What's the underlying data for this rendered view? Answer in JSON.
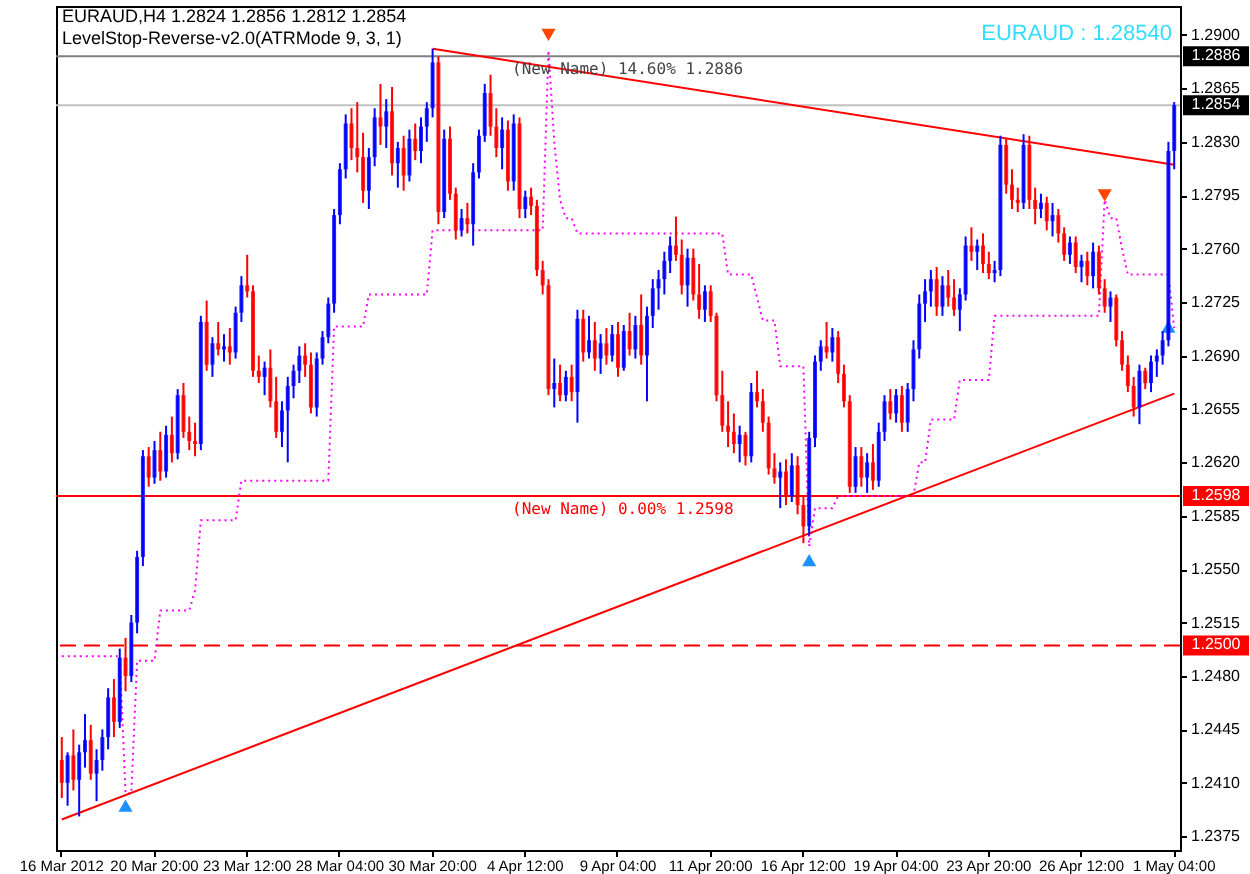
{
  "chart_data": {
    "type": "candlestick",
    "title": "EURAUD,H4  1.2824 1.2856 1.2812 1.2854",
    "subtitle": "LevelStop-Reverse-v2.0(ATRMode 9, 3, 1)",
    "categories": [
      "16 Mar 2012",
      null,
      null,
      null,
      null,
      null,
      null,
      null,
      null,
      null,
      null,
      null,
      null,
      null,
      null,
      null,
      "20 Mar 20:00",
      null,
      null,
      null,
      null,
      null,
      null,
      null,
      null,
      null,
      null,
      null,
      null,
      null,
      null,
      null,
      "23 Mar 12:00",
      null,
      null,
      null,
      null,
      null,
      null,
      null,
      null,
      null,
      null,
      null,
      null,
      null,
      null,
      null,
      "28 Mar 04:00",
      null,
      null,
      null,
      null,
      null,
      null,
      null,
      null,
      null,
      null,
      null,
      null,
      null,
      null,
      null,
      "30 Mar 20:00",
      null,
      null,
      null,
      null,
      null,
      null,
      null,
      null,
      null,
      null,
      null,
      null,
      null,
      null,
      null,
      "4 Apr 12:00",
      null,
      null,
      null,
      null,
      null,
      null,
      null,
      null,
      null,
      null,
      null,
      null,
      null,
      null,
      null,
      "9 Apr 04:00",
      null,
      null,
      null,
      null,
      null,
      null,
      null,
      null,
      null,
      null,
      null,
      null,
      null,
      null,
      null,
      "11 Apr 20:00",
      null,
      null,
      null,
      null,
      null,
      null,
      null,
      null,
      null,
      null,
      null,
      null,
      null,
      null,
      null,
      "16 Apr 12:00",
      null,
      null,
      null,
      null,
      null,
      null,
      null,
      null,
      null,
      null,
      null,
      null,
      null,
      null,
      null,
      "19 Apr 04:00",
      null,
      null,
      null,
      null,
      null,
      null,
      null,
      null,
      null,
      null,
      null,
      null,
      null,
      null,
      null,
      "23 Apr 20:00",
      null,
      null,
      null,
      null,
      null,
      null,
      null,
      null,
      null,
      null,
      null,
      null,
      null,
      null,
      null,
      "26 Apr 12:00",
      null,
      null,
      null,
      null,
      null,
      null,
      null,
      null,
      null,
      null,
      null,
      null,
      null,
      null,
      null,
      "1 May 04:00"
    ],
    "ohlc": [
      [
        1.2425,
        1.244,
        1.24,
        1.241
      ],
      [
        1.241,
        1.243,
        1.2395,
        1.2428
      ],
      [
        1.2428,
        1.2445,
        1.2405,
        1.2412
      ],
      [
        1.2412,
        1.2435,
        1.2388,
        1.243
      ],
      [
        1.243,
        1.2455,
        1.242,
        1.2438
      ],
      [
        1.2438,
        1.2448,
        1.2412,
        1.2416
      ],
      [
        1.2416,
        1.2432,
        1.2398,
        1.2425
      ],
      [
        1.2425,
        1.2445,
        1.2418,
        1.244
      ],
      [
        1.244,
        1.2472,
        1.2432,
        1.2466
      ],
      [
        1.2466,
        1.2478,
        1.244,
        1.245
      ],
      [
        1.245,
        1.2498,
        1.2446,
        1.2492
      ],
      [
        1.2492,
        1.2505,
        1.247,
        1.248
      ],
      [
        1.248,
        1.252,
        1.2476,
        1.2515
      ],
      [
        1.2515,
        1.2562,
        1.2508,
        1.2558
      ],
      [
        1.2558,
        1.2628,
        1.2552,
        1.2624
      ],
      [
        1.2624,
        1.263,
        1.2604,
        1.261
      ],
      [
        1.261,
        1.2634,
        1.2606,
        1.2628
      ],
      [
        1.2628,
        1.264,
        1.2608,
        1.2614
      ],
      [
        1.2614,
        1.2644,
        1.261,
        1.2638
      ],
      [
        1.2638,
        1.265,
        1.262,
        1.2626
      ],
      [
        1.2626,
        1.2668,
        1.2622,
        1.2664
      ],
      [
        1.2664,
        1.2672,
        1.2636,
        1.264
      ],
      [
        1.264,
        1.265,
        1.2628,
        1.2634
      ],
      [
        1.2634,
        1.2646,
        1.2624,
        1.2632
      ],
      [
        1.2632,
        1.2716,
        1.2628,
        1.2712
      ],
      [
        1.2712,
        1.2726,
        1.268,
        1.2684
      ],
      [
        1.2684,
        1.2702,
        1.2676,
        1.2698
      ],
      [
        1.2698,
        1.2712,
        1.269,
        1.2694
      ],
      [
        1.2694,
        1.2704,
        1.2686,
        1.2696
      ],
      [
        1.2696,
        1.2708,
        1.2684,
        1.2692
      ],
      [
        1.2692,
        1.2722,
        1.2688,
        1.2718
      ],
      [
        1.2718,
        1.2742,
        1.2712,
        1.2736
      ],
      [
        1.2736,
        1.2756,
        1.2728,
        1.2732
      ],
      [
        1.2732,
        1.2736,
        1.2676,
        1.268
      ],
      [
        1.268,
        1.269,
        1.2672,
        1.2676
      ],
      [
        1.2676,
        1.2686,
        1.2664,
        1.2682
      ],
      [
        1.2682,
        1.2694,
        1.2656,
        1.266
      ],
      [
        1.266,
        1.2676,
        1.2636,
        1.264
      ],
      [
        1.264,
        1.266,
        1.263,
        1.2654
      ],
      [
        1.2654,
        1.2676,
        1.262,
        1.267
      ],
      [
        1.267,
        1.2684,
        1.2662,
        1.268
      ],
      [
        1.268,
        1.2696,
        1.2672,
        1.269
      ],
      [
        1.269,
        1.2698,
        1.2676,
        1.2684
      ],
      [
        1.2684,
        1.2692,
        1.2652,
        1.2656
      ],
      [
        1.2656,
        1.2692,
        1.265,
        1.2688
      ],
      [
        1.2688,
        1.2706,
        1.2684,
        1.2702
      ],
      [
        1.2702,
        1.2728,
        1.2698,
        1.2724
      ],
      [
        1.2724,
        1.2786,
        1.2718,
        1.2782
      ],
      [
        1.2782,
        1.2816,
        1.2776,
        1.2812
      ],
      [
        1.2812,
        1.2848,
        1.2806,
        1.2842
      ],
      [
        1.2842,
        1.2852,
        1.2818,
        1.2826
      ],
      [
        1.2826,
        1.2856,
        1.281,
        1.282
      ],
      [
        1.282,
        1.2836,
        1.279,
        1.2798
      ],
      [
        1.2798,
        1.2826,
        1.2786,
        1.282
      ],
      [
        1.282,
        1.2852,
        1.2814,
        1.2846
      ],
      [
        1.2846,
        1.2868,
        1.2828,
        1.284
      ],
      [
        1.284,
        1.2858,
        1.2826,
        1.285
      ],
      [
        1.285,
        1.2866,
        1.2808,
        1.2816
      ],
      [
        1.2816,
        1.283,
        1.28,
        1.2826
      ],
      [
        1.2826,
        1.2834,
        1.2798,
        1.2808
      ],
      [
        1.2808,
        1.2838,
        1.2804,
        1.2832
      ],
      [
        1.2832,
        1.2842,
        1.2818,
        1.2824
      ],
      [
        1.2824,
        1.2846,
        1.2816,
        1.284
      ],
      [
        1.284,
        1.2856,
        1.283,
        1.2852
      ],
      [
        1.2852,
        1.2891,
        1.2846,
        1.2882
      ],
      [
        1.2882,
        1.2886,
        1.2776,
        1.2784
      ],
      [
        1.2784,
        1.2838,
        1.278,
        1.2832
      ],
      [
        1.2832,
        1.284,
        1.2792,
        1.2796
      ],
      [
        1.2796,
        1.28,
        1.2766,
        1.2772
      ],
      [
        1.2772,
        1.2786,
        1.2768,
        1.278
      ],
      [
        1.278,
        1.279,
        1.277,
        1.2776
      ],
      [
        1.2776,
        1.2816,
        1.2762,
        1.281
      ],
      [
        1.281,
        1.2838,
        1.2806,
        1.2834
      ],
      [
        1.2834,
        1.2868,
        1.283,
        1.2862
      ],
      [
        1.2862,
        1.2874,
        1.2834,
        1.284
      ],
      [
        1.284,
        1.2852,
        1.282,
        1.2826
      ],
      [
        1.2826,
        1.2846,
        1.2812,
        1.2838
      ],
      [
        1.2838,
        1.2844,
        1.2798,
        1.2804
      ],
      [
        1.2804,
        1.2848,
        1.2798,
        1.2842
      ],
      [
        1.2842,
        1.2846,
        1.278,
        1.2786
      ],
      [
        1.2786,
        1.2798,
        1.278,
        1.2794
      ],
      [
        1.2794,
        1.28,
        1.2782,
        1.2788
      ],
      [
        1.2788,
        1.2792,
        1.2742,
        1.2746
      ],
      [
        1.2746,
        1.2752,
        1.273,
        1.2736
      ],
      [
        1.2736,
        1.274,
        1.2664,
        1.2668
      ],
      [
        1.2668,
        1.2688,
        1.2656,
        1.2672
      ],
      [
        1.2672,
        1.2684,
        1.266,
        1.2664
      ],
      [
        1.2664,
        1.268,
        1.266,
        1.2676
      ],
      [
        1.2676,
        1.2684,
        1.266,
        1.2666
      ],
      [
        1.2666,
        1.272,
        1.2646,
        1.2714
      ],
      [
        1.2714,
        1.272,
        1.2686,
        1.2692
      ],
      [
        1.2692,
        1.2716,
        1.2688,
        1.27
      ],
      [
        1.27,
        1.2712,
        1.268,
        1.2688
      ],
      [
        1.2688,
        1.2704,
        1.2678,
        1.2698
      ],
      [
        1.2698,
        1.2708,
        1.2684,
        1.269
      ],
      [
        1.269,
        1.271,
        1.2686,
        1.2704
      ],
      [
        1.2704,
        1.2712,
        1.2676,
        1.2682
      ],
      [
        1.2682,
        1.271,
        1.268,
        1.2706
      ],
      [
        1.2706,
        1.2718,
        1.269,
        1.2694
      ],
      [
        1.2694,
        1.2716,
        1.2688,
        1.271
      ],
      [
        1.271,
        1.273,
        1.2684,
        1.269
      ],
      [
        1.269,
        1.2722,
        1.266,
        1.2716
      ],
      [
        1.2716,
        1.274,
        1.2708,
        1.2734
      ],
      [
        1.2734,
        1.2746,
        1.272,
        1.274
      ],
      [
        1.274,
        1.2758,
        1.273,
        1.2752
      ],
      [
        1.2752,
        1.2768,
        1.2744,
        1.2762
      ],
      [
        1.2762,
        1.2781,
        1.2752,
        1.2756
      ],
      [
        1.2756,
        1.2766,
        1.273,
        1.2736
      ],
      [
        1.2736,
        1.276,
        1.2722,
        1.2754
      ],
      [
        1.2754,
        1.276,
        1.2726,
        1.273
      ],
      [
        1.273,
        1.275,
        1.2714,
        1.272
      ],
      [
        1.272,
        1.2736,
        1.2712,
        1.2732
      ],
      [
        1.2732,
        1.2736,
        1.2712,
        1.2716
      ],
      [
        1.2716,
        1.2718,
        1.266,
        1.2664
      ],
      [
        1.2664,
        1.268,
        1.264,
        1.2644
      ],
      [
        1.2644,
        1.266,
        1.263,
        1.264
      ],
      [
        1.264,
        1.2652,
        1.2626,
        1.2632
      ],
      [
        1.2632,
        1.2644,
        1.262,
        1.2638
      ],
      [
        1.2638,
        1.264,
        1.2618,
        1.2624
      ],
      [
        1.2624,
        1.2672,
        1.262,
        1.2666
      ],
      [
        1.2666,
        1.268,
        1.2656,
        1.266
      ],
      [
        1.266,
        1.2668,
        1.264,
        1.2646
      ],
      [
        1.2646,
        1.265,
        1.2612,
        1.2616
      ],
      [
        1.2616,
        1.2626,
        1.2606,
        1.261
      ],
      [
        1.261,
        1.262,
        1.259,
        1.2614
      ],
      [
        1.2614,
        1.2622,
        1.2592,
        1.2598
      ],
      [
        1.2598,
        1.2626,
        1.2594,
        1.2618
      ],
      [
        1.2618,
        1.2624,
        1.2586,
        1.2592
      ],
      [
        1.2592,
        1.2598,
        1.2567,
        1.2578
      ],
      [
        1.2578,
        1.264,
        1.2572,
        1.2636
      ],
      [
        1.2636,
        1.269,
        1.263,
        1.2686
      ],
      [
        1.2686,
        1.27,
        1.268,
        1.2696
      ],
      [
        1.2696,
        1.2712,
        1.2688,
        1.2692
      ],
      [
        1.2692,
        1.2708,
        1.2686,
        1.2702
      ],
      [
        1.2702,
        1.2706,
        1.2672,
        1.2678
      ],
      [
        1.2678,
        1.2684,
        1.2656,
        1.266
      ],
      [
        1.266,
        1.2664,
        1.26,
        1.2604
      ],
      [
        1.2604,
        1.263,
        1.26,
        1.2624
      ],
      [
        1.2624,
        1.263,
        1.2604,
        1.261
      ],
      [
        1.261,
        1.2626,
        1.26,
        1.262
      ],
      [
        1.262,
        1.2632,
        1.2602,
        1.2608
      ],
      [
        1.2608,
        1.2646,
        1.2604,
        1.264
      ],
      [
        1.264,
        1.2664,
        1.2634,
        1.266
      ],
      [
        1.266,
        1.2668,
        1.2648,
        1.2652
      ],
      [
        1.2652,
        1.2668,
        1.2646,
        1.2664
      ],
      [
        1.2664,
        1.267,
        1.264,
        1.2646
      ],
      [
        1.2646,
        1.2672,
        1.264,
        1.2668
      ],
      [
        1.2668,
        1.27,
        1.266,
        1.2694
      ],
      [
        1.2694,
        1.273,
        1.2688,
        1.2724
      ],
      [
        1.2724,
        1.274,
        1.2712,
        1.2732
      ],
      [
        1.2732,
        1.2746,
        1.2722,
        1.274
      ],
      [
        1.274,
        1.2748,
        1.2716,
        1.2722
      ],
      [
        1.2722,
        1.2742,
        1.2716,
        1.2736
      ],
      [
        1.2736,
        1.2746,
        1.2722,
        1.2728
      ],
      [
        1.2728,
        1.274,
        1.2716,
        1.272
      ],
      [
        1.272,
        1.2734,
        1.2706,
        1.273
      ],
      [
        1.273,
        1.2768,
        1.2726,
        1.2762
      ],
      [
        1.2762,
        1.2774,
        1.2752,
        1.2758
      ],
      [
        1.2758,
        1.2766,
        1.2746,
        1.2762
      ],
      [
        1.2762,
        1.277,
        1.2744,
        1.275
      ],
      [
        1.275,
        1.2758,
        1.274,
        1.2744
      ],
      [
        1.2744,
        1.2752,
        1.2738,
        1.2746
      ],
      [
        1.2746,
        1.2834,
        1.2742,
        1.2828
      ],
      [
        1.2828,
        1.2832,
        1.2796,
        1.2802
      ],
      [
        1.2802,
        1.2812,
        1.2786,
        1.2792
      ],
      [
        1.2792,
        1.28,
        1.2784,
        1.279
      ],
      [
        1.279,
        1.2835,
        1.2786,
        1.2828
      ],
      [
        1.2828,
        1.2834,
        1.2786,
        1.2792
      ],
      [
        1.2792,
        1.28,
        1.2776,
        1.2786
      ],
      [
        1.2786,
        1.2796,
        1.278,
        1.279
      ],
      [
        1.279,
        1.2794,
        1.2772,
        1.2778
      ],
      [
        1.2778,
        1.279,
        1.2768,
        1.2782
      ],
      [
        1.2782,
        1.2786,
        1.2764,
        1.277
      ],
      [
        1.277,
        1.2774,
        1.2752,
        1.2756
      ],
      [
        1.2756,
        1.2768,
        1.275,
        1.2764
      ],
      [
        1.2764,
        1.2768,
        1.2744,
        1.2748
      ],
      [
        1.2748,
        1.2756,
        1.2738,
        1.2752
      ],
      [
        1.2752,
        1.2758,
        1.2736,
        1.2742
      ],
      [
        1.2742,
        1.2764,
        1.2734,
        1.2758
      ],
      [
        1.2758,
        1.2762,
        1.273,
        1.2734
      ],
      [
        1.2734,
        1.274,
        1.2718,
        1.2722
      ],
      [
        1.2722,
        1.2732,
        1.2712,
        1.2728
      ],
      [
        1.2728,
        1.273,
        1.2696,
        1.27
      ],
      [
        1.27,
        1.2706,
        1.268,
        1.2684
      ],
      [
        1.2684,
        1.269,
        1.2666,
        1.267
      ],
      [
        1.267,
        1.2676,
        1.265,
        1.2656
      ],
      [
        1.2656,
        1.2684,
        1.2645,
        1.268
      ],
      [
        1.268,
        1.2682,
        1.2668,
        1.2672
      ],
      [
        1.2672,
        1.269,
        1.2666,
        1.2686
      ],
      [
        1.2686,
        1.2694,
        1.2676,
        1.269
      ],
      [
        1.269,
        1.2706,
        1.2684,
        1.27
      ],
      [
        1.27,
        1.283,
        1.2696,
        1.2824
      ],
      [
        1.2824,
        1.2856,
        1.2812,
        1.2854
      ]
    ],
    "colors": [
      "#ff0000",
      "#0000ff",
      "#ff0000",
      "#0000ff",
      "#0000ff",
      "#ff0000",
      "#0000ff",
      "#0000ff",
      "#0000ff",
      "#ff0000",
      "#0000ff",
      "#ff0000",
      "#0000ff",
      "#0000ff",
      "#0000ff",
      "#ff0000",
      "#0000ff",
      "#ff0000",
      "#0000ff",
      "#ff0000",
      "#0000ff",
      "#ff0000",
      "#ff0000",
      "#ff0000",
      "#0000ff",
      "#ff0000",
      "#0000ff",
      "#ff0000",
      "#0000ff",
      "#ff0000",
      "#0000ff",
      "#0000ff",
      "#ff0000",
      "#ff0000",
      "#ff0000",
      "#0000ff",
      "#ff0000",
      "#ff0000",
      "#0000ff",
      "#0000ff",
      "#0000ff",
      "#0000ff",
      "#ff0000",
      "#ff0000",
      "#0000ff",
      "#0000ff",
      "#0000ff",
      "#0000ff",
      "#0000ff",
      "#0000ff",
      "#ff0000",
      "#ff0000",
      "#ff0000",
      "#0000ff",
      "#0000ff",
      "#ff0000",
      "#0000ff",
      "#ff0000",
      "#0000ff",
      "#ff0000",
      "#0000ff",
      "#ff0000",
      "#0000ff",
      "#0000ff",
      "#0000ff",
      "#ff0000",
      "#0000ff",
      "#ff0000",
      "#ff0000",
      "#0000ff",
      "#ff0000",
      "#0000ff",
      "#0000ff",
      "#0000ff",
      "#ff0000",
      "#ff0000",
      "#0000ff",
      "#ff0000",
      "#0000ff",
      "#ff0000",
      "#0000ff",
      "#ff0000",
      "#ff0000",
      "#ff0000",
      "#ff0000",
      "#0000ff",
      "#ff0000",
      "#0000ff",
      "#ff0000",
      "#0000ff",
      "#ff0000",
      "#0000ff",
      "#ff0000",
      "#0000ff",
      "#ff0000",
      "#0000ff",
      "#ff0000",
      "#0000ff",
      "#ff0000",
      "#0000ff",
      "#ff0000",
      "#0000ff",
      "#0000ff",
      "#0000ff",
      "#0000ff",
      "#0000ff",
      "#ff0000",
      "#ff0000",
      "#0000ff",
      "#ff0000",
      "#ff0000",
      "#0000ff",
      "#ff0000",
      "#ff0000",
      "#ff0000",
      "#ff0000",
      "#ff0000",
      "#0000ff",
      "#ff0000",
      "#0000ff",
      "#ff0000",
      "#ff0000",
      "#ff0000",
      "#ff0000",
      "#0000ff",
      "#ff0000",
      "#0000ff",
      "#ff0000",
      "#ff0000",
      "#0000ff",
      "#0000ff",
      "#0000ff",
      "#ff0000",
      "#0000ff",
      "#ff0000",
      "#ff0000",
      "#ff0000",
      "#0000ff",
      "#ff0000",
      "#0000ff",
      "#ff0000",
      "#0000ff",
      "#0000ff",
      "#ff0000",
      "#0000ff",
      "#ff0000",
      "#0000ff",
      "#0000ff",
      "#0000ff",
      "#0000ff",
      "#0000ff",
      "#ff0000",
      "#0000ff",
      "#ff0000",
      "#ff0000",
      "#0000ff",
      "#0000ff",
      "#ff0000",
      "#0000ff",
      "#ff0000",
      "#ff0000",
      "#0000ff",
      "#0000ff",
      "#ff0000",
      "#ff0000",
      "#ff0000",
      "#0000ff",
      "#ff0000",
      "#ff0000",
      "#0000ff",
      "#ff0000",
      "#0000ff",
      "#ff0000",
      "#ff0000",
      "#0000ff",
      "#ff0000",
      "#0000ff",
      "#ff0000",
      "#0000ff",
      "#ff0000",
      "#ff0000",
      "#0000ff",
      "#ff0000",
      "#ff0000",
      "#ff0000",
      "#ff0000",
      "#0000ff",
      "#ff0000",
      "#0000ff",
      "#0000ff",
      "#0000ff",
      "#0000ff",
      "#0000ff"
    ],
    "series": [
      {
        "type": "line",
        "color": "#ff00ff",
        "line_style": "dotted",
        "values": [
          1.2493,
          1.2493,
          1.2493,
          1.2493,
          1.2493,
          1.2493,
          1.2493,
          1.2493,
          1.2493,
          1.2493,
          1.2493,
          1.2403,
          1.2403,
          1.249,
          1.249,
          1.249,
          1.249,
          1.2523,
          1.2523,
          1.2523,
          1.2523,
          1.2523,
          1.2523,
          1.2536,
          1.2582,
          1.2582,
          1.2582,
          1.2582,
          1.2582,
          1.2582,
          1.2582,
          1.2608,
          1.2608,
          1.2608,
          1.2608,
          1.2608,
          1.2608,
          1.2608,
          1.2608,
          1.2608,
          1.2608,
          1.2608,
          1.2608,
          1.2608,
          1.2608,
          1.2608,
          1.2608,
          1.2709,
          1.2709,
          1.2709,
          1.2709,
          1.2709,
          1.2709,
          1.273,
          1.273,
          1.273,
          1.273,
          1.273,
          1.273,
          1.273,
          1.273,
          1.273,
          1.273,
          1.273,
          1.2772,
          1.2772,
          1.2772,
          1.2772,
          1.2772,
          1.2772,
          1.2772,
          1.2772,
          1.2772,
          1.2772,
          1.2772,
          1.2772,
          1.2772,
          1.2772,
          1.2772,
          1.2772,
          1.2772,
          1.2772,
          1.2772,
          1.2772,
          1.289,
          1.283,
          1.2792,
          1.278,
          1.278,
          1.277,
          1.277,
          1.277,
          1.277,
          1.277,
          1.277,
          1.277,
          1.277,
          1.277,
          1.277,
          1.277,
          1.277,
          1.277,
          1.277,
          1.277,
          1.277,
          1.277,
          1.277,
          1.277,
          1.277,
          1.277,
          1.277,
          1.277,
          1.277,
          1.277,
          1.277,
          1.2743,
          1.2743,
          1.2743,
          1.2743,
          1.2743,
          1.2728,
          1.2713,
          1.2713,
          1.2713,
          1.2683,
          1.2683,
          1.2683,
          1.2683,
          1.2683,
          1.2565,
          1.259,
          1.259,
          1.259,
          1.259,
          1.2598,
          1.2598,
          1.2598,
          1.2598,
          1.2598,
          1.2598,
          1.2598,
          1.2598,
          1.2598,
          1.2598,
          1.2598,
          1.2598,
          1.2598,
          1.2598,
          1.262,
          1.262,
          1.2648,
          1.2648,
          1.2648,
          1.2648,
          1.2648,
          1.2674,
          1.2674,
          1.2674,
          1.2674,
          1.2674,
          1.2674,
          1.2716,
          1.2716,
          1.2716,
          1.2716,
          1.2716,
          1.2716,
          1.2716,
          1.2716,
          1.2716,
          1.2716,
          1.2716,
          1.2716,
          1.2716,
          1.2716,
          1.2716,
          1.2716,
          1.2716,
          1.2716,
          1.2716,
          1.2792,
          1.278,
          1.278,
          1.276,
          1.2743,
          1.2743,
          1.2743,
          1.2743,
          1.2743,
          1.2743,
          1.2743,
          1.2743,
          1.2708
        ]
      },
      {
        "type": "line",
        "color": "#ff0000",
        "x": [
          "30 Mar 20:00",
          "1 May 04:00"
        ],
        "values": [
          1.2891,
          1.2815
        ]
      },
      {
        "type": "line",
        "color": "#ff0000",
        "x": [
          "16 Mar 2012",
          "1 May 04:00"
        ],
        "values": [
          1.2386,
          1.2665
        ]
      },
      {
        "type": "scatter",
        "color": "#1e90ff",
        "marker": "triangle",
        "values": [
          null,
          null,
          null,
          null,
          null,
          null,
          null,
          null,
          null,
          null,
          null,
          1.2395,
          null,
          null,
          null,
          null,
          null,
          null,
          null,
          null,
          null,
          null,
          null,
          null,
          null,
          null,
          null,
          null,
          null,
          null,
          null,
          null,
          null,
          null,
          null,
          null,
          null,
          null,
          null,
          null,
          null,
          null,
          null,
          null,
          null,
          null,
          null,
          null,
          null,
          null,
          null,
          null,
          null,
          null,
          null,
          null,
          null,
          null,
          null,
          null,
          null,
          null,
          null,
          null,
          null,
          null,
          null,
          null,
          null,
          null,
          null,
          null,
          null,
          null,
          null,
          null,
          null,
          null,
          null,
          null,
          null,
          null,
          null,
          null,
          null,
          null,
          null,
          null,
          null,
          null,
          null,
          null,
          null,
          null,
          null,
          null,
          null,
          null,
          null,
          null,
          null,
          null,
          null,
          null,
          null,
          null,
          null,
          null,
          null,
          null,
          null,
          null,
          null,
          null,
          null,
          null,
          null,
          null,
          null,
          null,
          null,
          null,
          null,
          null,
          null,
          null,
          null,
          null,
          null,
          1.2556,
          null,
          null,
          null,
          null,
          null,
          null,
          null,
          null,
          null,
          null,
          null,
          null,
          null,
          null,
          null,
          null,
          null,
          null,
          null,
          null,
          null,
          null,
          null,
          null,
          null,
          null,
          null,
          null,
          null,
          null,
          null,
          null,
          null,
          null,
          null,
          null,
          null,
          null,
          null,
          null,
          null,
          null,
          null,
          null,
          null,
          null,
          null,
          null,
          null,
          null,
          null,
          null,
          null,
          null,
          null,
          null,
          null,
          null,
          null,
          null,
          null,
          1.2709,
          null
        ]
      },
      {
        "type": "scatter",
        "color": "#ff4500",
        "marker": "triangle",
        "values": [
          null,
          null,
          null,
          null,
          null,
          null,
          null,
          null,
          null,
          null,
          null,
          null,
          null,
          null,
          null,
          null,
          null,
          null,
          null,
          null,
          null,
          null,
          null,
          null,
          null,
          null,
          null,
          null,
          null,
          null,
          null,
          null,
          null,
          null,
          null,
          null,
          null,
          null,
          null,
          null,
          null,
          null,
          null,
          null,
          null,
          null,
          null,
          null,
          null,
          null,
          null,
          null,
          null,
          null,
          null,
          null,
          null,
          null,
          null,
          null,
          null,
          null,
          null,
          null,
          null,
          null,
          null,
          null,
          null,
          null,
          null,
          null,
          null,
          null,
          null,
          null,
          null,
          null,
          null,
          null,
          null,
          null,
          null,
          null,
          1.29,
          null,
          null,
          null,
          null,
          null,
          null,
          null,
          null,
          null,
          null,
          null,
          null,
          null,
          null,
          null,
          null,
          null,
          null,
          null,
          null,
          null,
          null,
          null,
          null,
          null,
          null,
          null,
          null,
          null,
          null,
          null,
          null,
          null,
          null,
          null,
          null,
          null,
          null,
          null,
          null,
          null,
          null,
          null,
          null,
          null,
          null,
          null,
          null,
          null,
          null,
          null,
          null,
          null,
          null,
          null,
          null,
          null,
          null,
          null,
          null,
          null,
          null,
          null,
          null,
          null,
          null,
          null,
          null,
          null,
          null,
          null,
          null,
          null,
          null,
          null,
          null,
          null,
          null,
          null,
          null,
          null,
          null,
          null,
          null,
          null,
          null,
          null,
          null,
          null,
          null,
          null,
          null,
          null,
          null,
          null,
          1.2795,
          null,
          null,
          null,
          null,
          null,
          null,
          null,
          null,
          null,
          null,
          null,
          null
        ]
      }
    ],
    "ylim": [
      1.2366,
      1.2919
    ],
    "yticks": [
      1.2375,
      {
        "value": 1.241,
        "label": "1.2410"
      },
      1.2445,
      {
        "value": 1.248,
        "label": "1.2480"
      },
      1.2515,
      {
        "value": 1.255,
        "label": "1.2550"
      },
      1.2585,
      {
        "value": 1.262,
        "label": "1.2620"
      },
      1.2655,
      {
        "value": 1.269,
        "label": "1.2690"
      },
      1.2725,
      {
        "value": 1.276,
        "label": "1.2760"
      },
      1.2795,
      {
        "value": 1.283,
        "label": "1.2830"
      },
      1.2865,
      {
        "value": 1.29,
        "label": "1.2900"
      }
    ],
    "ref_lines": [
      {
        "axis": "y",
        "value": 1.2886,
        "label": "1.2886",
        "color": "#808080"
      },
      {
        "axis": "y",
        "value": 1.2854,
        "label": "1.2854",
        "color": "#c0c0c0"
      },
      {
        "axis": "y",
        "value": 1.2598,
        "label": "1.2598",
        "color": "#ff0000"
      },
      {
        "axis": "y",
        "value": 1.25,
        "label": "1.2500",
        "color": "#ff0000",
        "line_style": "dashed"
      }
    ],
    "annotations": [
      "EURAUD : 1.28540",
      {
        "text": "(New Name)  14.60%  1.2886",
        "y": 1.2886
      },
      {
        "text": "(New Name)  0.00%  1.2598",
        "y": 1.2598
      }
    ]
  }
}
